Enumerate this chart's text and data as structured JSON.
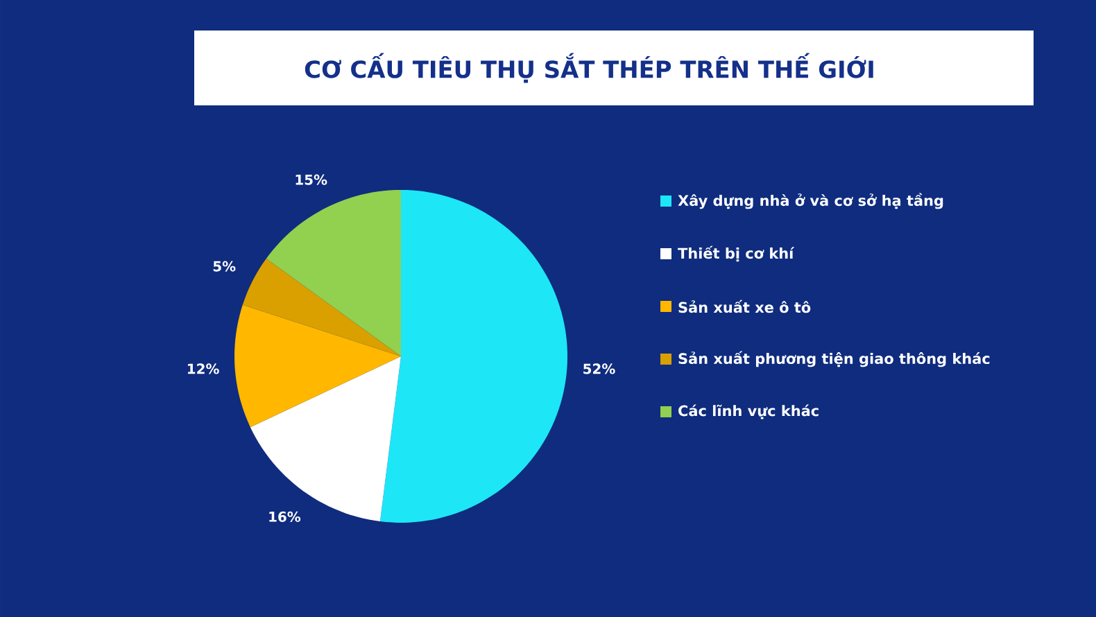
{
  "chart_data": {
    "type": "pie",
    "title": "CƠ CẤU TIÊU THỤ SẮT THÉP TRÊN THẾ GIỚI",
    "categories": [
      "Xây dựng nhà ở và cơ sở hạ tầng",
      "Thiết bị cơ khí",
      "Sản xuất xe ô tô",
      "Sản xuất phương tiện giao thông khác",
      "Các lĩnh vực khác"
    ],
    "values": [
      52,
      16,
      12,
      5,
      15
    ],
    "value_labels": [
      "52%",
      "16%",
      "12%",
      "5%",
      "15%"
    ],
    "colors": [
      "#1de6f7",
      "#ffffff",
      "#ffb700",
      "#d9a000",
      "#92d050"
    ],
    "legend": "right"
  }
}
